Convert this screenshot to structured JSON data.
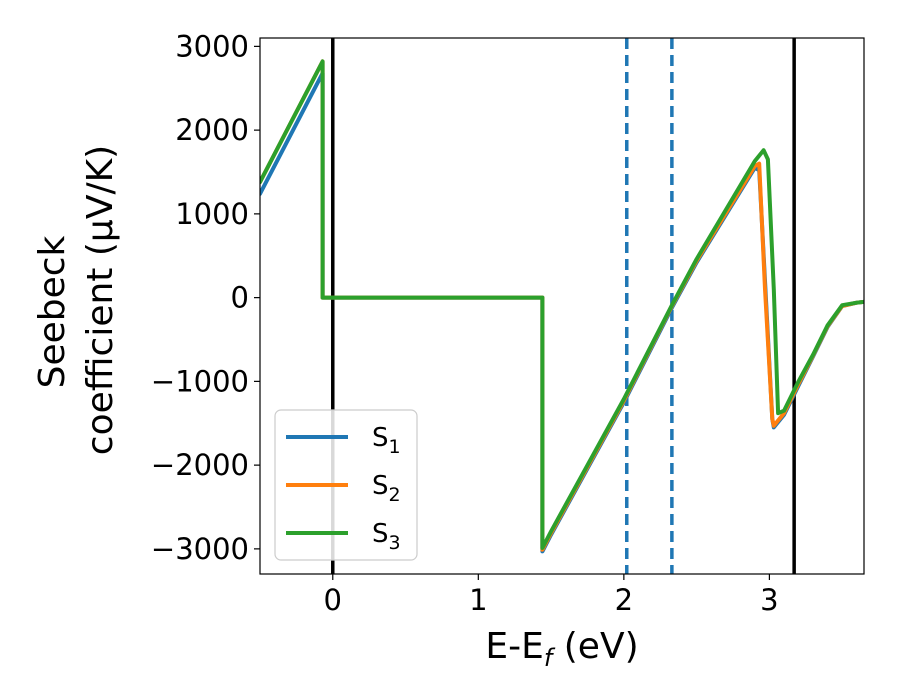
{
  "chart_data": {
    "type": "line",
    "xlabel_main": "E-E",
    "xlabel_sub": "f",
    "xlabel_unit": " (eV)",
    "ylabel_line1": "Seebeck",
    "ylabel_line2": "coefficient  (μV/K)",
    "xlim": [
      -0.5,
      3.65
    ],
    "ylim": [
      -3300,
      3100
    ],
    "xticks": [
      {
        "value": 0,
        "label": "0"
      },
      {
        "value": 1,
        "label": "1"
      },
      {
        "value": 2,
        "label": "2"
      },
      {
        "value": 3,
        "label": "3"
      }
    ],
    "yticks": [
      {
        "value": 3000,
        "label": "3000"
      },
      {
        "value": 2000,
        "label": "2000"
      },
      {
        "value": 1000,
        "label": "1000"
      },
      {
        "value": 0,
        "label": "0"
      },
      {
        "value": -1000,
        "label": "−1000"
      },
      {
        "value": -2000,
        "label": "−2000"
      },
      {
        "value": -3000,
        "label": "−3000"
      }
    ],
    "vlines": [
      {
        "x": 0.0,
        "style": "solid",
        "color": "#000000"
      },
      {
        "x": 3.17,
        "style": "solid",
        "color": "#000000"
      },
      {
        "x": 2.02,
        "style": "dashed",
        "color": "#1f77b4"
      },
      {
        "x": 2.33,
        "style": "dashed",
        "color": "#1f77b4"
      }
    ],
    "legend_position": "lower-left",
    "grid": false,
    "series": [
      {
        "name": "S",
        "sub": "1",
        "color": "#1f77b4",
        "x": [
          -0.5,
          -0.07,
          -0.07,
          1.44,
          1.44,
          1.5,
          2.0,
          2.33,
          2.5,
          2.9,
          2.93,
          2.97,
          3.02,
          3.03,
          3.1,
          3.2,
          3.3,
          3.4,
          3.5,
          3.6,
          3.65
        ],
        "y": [
          1240,
          2680,
          0,
          0,
          -3030,
          -2830,
          -1250,
          -120,
          420,
          1550,
          1520,
          200,
          -1450,
          -1550,
          -1400,
          -1050,
          -700,
          -350,
          -100,
          -60,
          -50
        ]
      },
      {
        "name": "S",
        "sub": "2",
        "color": "#ff7f0e",
        "x": [
          -0.5,
          -0.07,
          -0.07,
          1.44,
          1.44,
          1.5,
          2.0,
          2.33,
          2.5,
          2.9,
          2.93,
          2.97,
          3.02,
          3.03,
          3.1,
          3.2,
          3.3,
          3.4,
          3.5,
          3.6,
          3.65
        ],
        "y": [
          1380,
          2820,
          0,
          0,
          -3010,
          -2810,
          -1230,
          -100,
          440,
          1570,
          1600,
          100,
          -1450,
          -1530,
          -1380,
          -1030,
          -690,
          -340,
          -100,
          -60,
          -50
        ]
      },
      {
        "name": "S",
        "sub": "3",
        "color": "#2ca02c",
        "x": [
          -0.5,
          -0.07,
          -0.07,
          1.44,
          1.44,
          1.5,
          2.0,
          2.33,
          2.5,
          2.9,
          2.96,
          2.99,
          3.03,
          3.06,
          3.1,
          3.2,
          3.3,
          3.4,
          3.5,
          3.6,
          3.65
        ],
        "y": [
          1380,
          2820,
          0,
          0,
          -2990,
          -2790,
          -1210,
          -90,
          460,
          1630,
          1760,
          1650,
          100,
          -1380,
          -1350,
          -1000,
          -680,
          -330,
          -90,
          -60,
          -50
        ]
      }
    ]
  }
}
